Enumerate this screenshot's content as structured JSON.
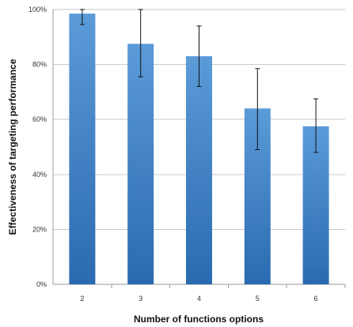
{
  "chart_data": {
    "type": "bar",
    "title": "",
    "xlabel": "Number of functions options",
    "ylabel": "Effectiveness of targeting performance",
    "categories": [
      "2",
      "3",
      "4",
      "5",
      "6"
    ],
    "values": [
      98.5,
      87.5,
      83,
      64,
      57.5
    ],
    "error": [
      {
        "low": 94.5,
        "high": 100
      },
      {
        "low": 75.5,
        "high": 100
      },
      {
        "low": 72,
        "high": 94
      },
      {
        "low": 49,
        "high": 78.5
      },
      {
        "low": 48,
        "high": 67.5
      }
    ],
    "ylim": [
      0,
      100
    ],
    "yticks": [
      {
        "value": 0,
        "label": "0%"
      },
      {
        "value": 20,
        "label": "20%"
      },
      {
        "value": 40,
        "label": "40%"
      },
      {
        "value": 60,
        "label": "60%"
      },
      {
        "value": 80,
        "label": "80%"
      },
      {
        "value": 100,
        "label": "100%"
      }
    ],
    "grid": true,
    "legend": "none",
    "colors": {
      "bar_top": "#5b9bd8",
      "bar_bottom": "#2a6ab0",
      "grid": "#c8c8c8",
      "axis": "#999999",
      "error_bar": "#111111"
    }
  }
}
